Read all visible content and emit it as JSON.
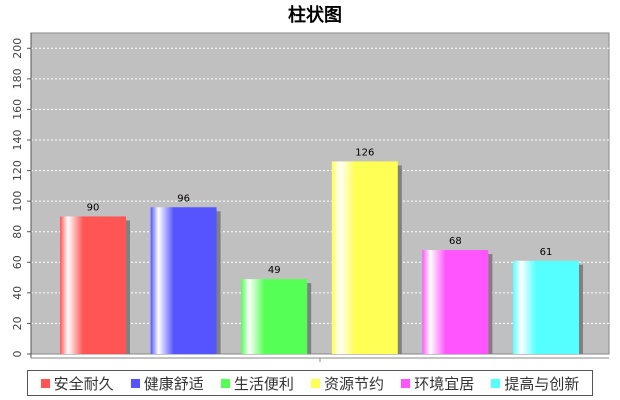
{
  "chart_data": {
    "type": "bar",
    "title": "柱状图",
    "xlabel": "",
    "ylabel": "",
    "categories": [
      "安全耐久",
      "健康舒适",
      "生活便利",
      "资源节约",
      "环境宜居",
      "提高与创新"
    ],
    "values": [
      90,
      96,
      49,
      126,
      68,
      61
    ],
    "colors": [
      "#ff5555",
      "#5555ff",
      "#55ff55",
      "#ffff55",
      "#ff55ff",
      "#55ffff"
    ],
    "yticks": [
      0,
      20,
      40,
      60,
      80,
      100,
      120,
      140,
      160,
      180,
      200
    ],
    "ylim": [
      0,
      210
    ],
    "grid": true,
    "legend": "bottom",
    "plot_background": "#c0c0c0"
  }
}
